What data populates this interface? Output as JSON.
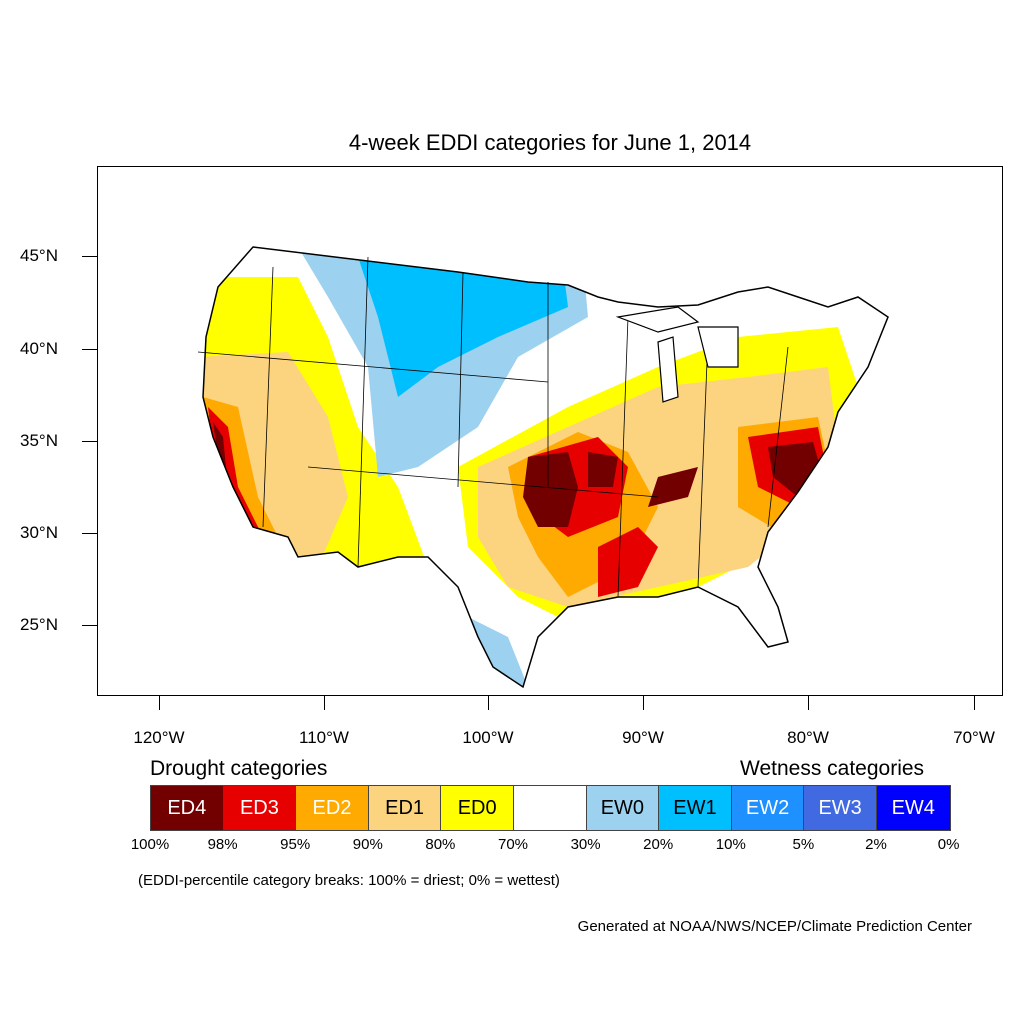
{
  "title": "4-week EDDI categories for June 1, 2014",
  "latitude_labels": [
    "45°N",
    "40°N",
    "35°N",
    "30°N",
    "25°N"
  ],
  "longitude_labels": [
    "120°W",
    "110°W",
    "100°W",
    "90°W",
    "80°W",
    "70°W"
  ],
  "legend": {
    "drought_heading": "Drought categories",
    "wetness_heading": "Wetness categories",
    "categories": [
      {
        "label": "ED4",
        "color": "#730000",
        "text_color": "#ffffff"
      },
      {
        "label": "ED3",
        "color": "#e60000",
        "text_color": "#ffffff"
      },
      {
        "label": "ED2",
        "color": "#ffaa00",
        "text_color": "#ffffff"
      },
      {
        "label": "ED1",
        "color": "#fcd37f",
        "text_color": "#000000"
      },
      {
        "label": "ED0",
        "color": "#ffff00",
        "text_color": "#000000"
      },
      {
        "label": "",
        "color": "#ffffff",
        "text_color": "#000000"
      },
      {
        "label": "EW0",
        "color": "#9dd1f0",
        "text_color": "#000000"
      },
      {
        "label": "EW1",
        "color": "#00bfff",
        "text_color": "#000000"
      },
      {
        "label": "EW2",
        "color": "#1e90ff",
        "text_color": "#ffffff"
      },
      {
        "label": "EW3",
        "color": "#4169e1",
        "text_color": "#ffffff"
      },
      {
        "label": "EW4",
        "color": "#0000ff",
        "text_color": "#ffffff"
      }
    ],
    "breaks": [
      "100%",
      "98%",
      "95%",
      "90%",
      "80%",
      "70%",
      "30%",
      "20%",
      "10%",
      "5%",
      "2%",
      "0%"
    ]
  },
  "note": "(EDDI-percentile category breaks: 100% = driest; 0% = wettest)",
  "credit": "Generated at NOAA/NWS/NCEP/Climate Prediction Center"
}
